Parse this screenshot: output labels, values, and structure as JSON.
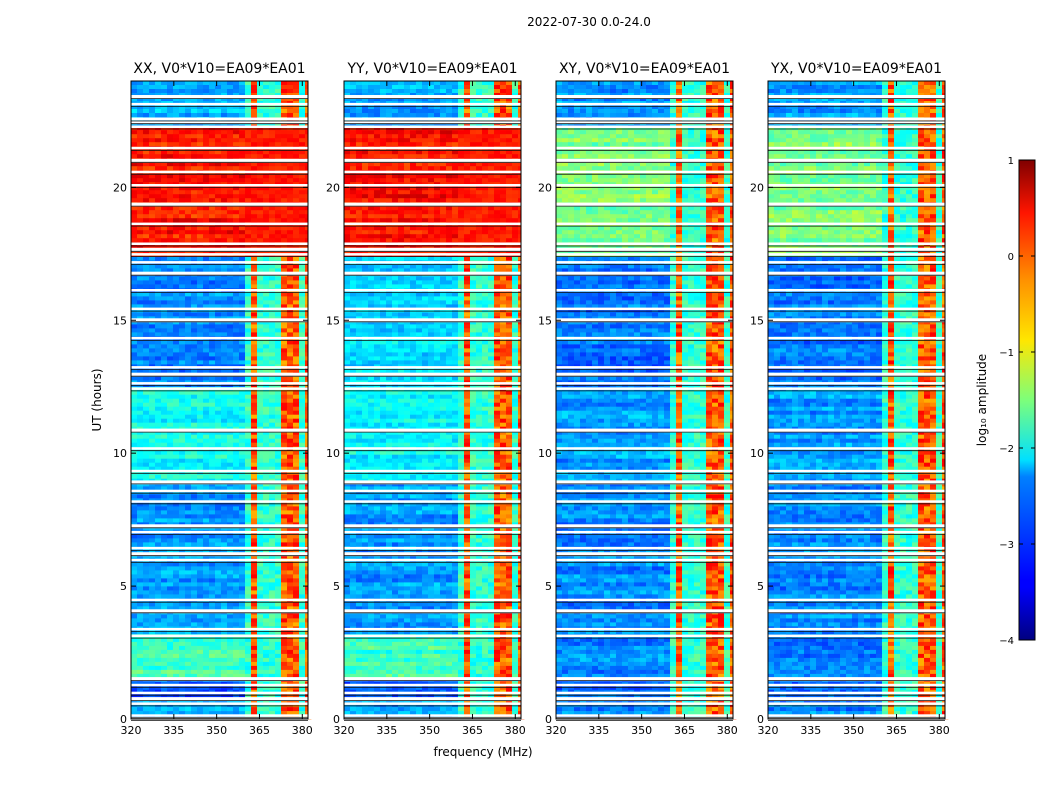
{
  "figure": {
    "suptitle": "2022-07-30 0.0-24.0",
    "xlabel": "frequency (MHz)",
    "ylabel": "UT (hours)"
  },
  "chart_data": {
    "type": "heatmap",
    "x_range": [
      320,
      382
    ],
    "y_range": [
      0,
      24
    ],
    "x_ticks": [
      320,
      335,
      350,
      365,
      380
    ],
    "y_ticks": [
      0,
      5,
      10,
      15,
      20
    ],
    "rfi_band_mhz": [
      359.5,
      381.5
    ],
    "rfi_channels_mhz": [
      360.5,
      363.5,
      366,
      368.5,
      371,
      373.5,
      376,
      378.5
    ],
    "flag_gaps_hours": [
      0.0,
      0.1,
      0.55,
      0.75,
      0.95,
      1.25,
      1.5,
      3.1,
      3.35,
      4.05,
      4.45,
      5.95,
      6.2,
      6.4,
      7.0,
      7.25,
      8.15,
      8.55,
      8.9,
      9.3,
      10.15,
      10.85,
      12.4,
      12.6,
      12.95,
      13.2,
      14.3,
      15.0,
      15.4,
      16.1,
      16.75,
      17.15,
      17.45,
      17.65,
      17.85,
      18.6,
      19.35,
      20.05,
      20.55,
      21.0,
      21.45,
      22.25,
      22.45,
      22.55,
      23.1,
      23.4
    ],
    "panels": [
      {
        "title": "XX, V0*V10=EA09*EA01",
        "tick_labels": true,
        "segments": [
          {
            "from": 0,
            "to": 0.75,
            "level": -2.6
          },
          {
            "from": 0.75,
            "to": 1.55,
            "level": -2.9
          },
          {
            "from": 1.55,
            "to": 3.2,
            "level": -1.8
          },
          {
            "from": 3.2,
            "to": 8.9,
            "level": -2.6
          },
          {
            "from": 8.9,
            "to": 12.5,
            "level": -2.1
          },
          {
            "from": 12.5,
            "to": 17.4,
            "level": -2.7
          },
          {
            "from": 17.4,
            "to": 22.3,
            "level": 0.3
          },
          {
            "from": 22.3,
            "to": 24,
            "level": -2.5
          }
        ]
      },
      {
        "title": "YY, V0*V10=EA09*EA01",
        "tick_labels": false,
        "segments": [
          {
            "from": 0,
            "to": 0.75,
            "level": -2.6
          },
          {
            "from": 0.75,
            "to": 1.55,
            "level": -2.9
          },
          {
            "from": 1.55,
            "to": 3.2,
            "level": -1.8
          },
          {
            "from": 3.2,
            "to": 8.9,
            "level": -2.6
          },
          {
            "from": 8.9,
            "to": 12.5,
            "level": -2.1
          },
          {
            "from": 12.5,
            "to": 17.4,
            "level": -2.3
          },
          {
            "from": 17.4,
            "to": 22.3,
            "level": 0.3
          },
          {
            "from": 22.3,
            "to": 24,
            "level": -2.5
          }
        ]
      },
      {
        "title": "XY, V0*V10=EA09*EA01",
        "tick_labels": false,
        "segments": [
          {
            "from": 0,
            "to": 0.75,
            "level": -2.7
          },
          {
            "from": 0.75,
            "to": 1.55,
            "level": -2.9
          },
          {
            "from": 1.55,
            "to": 3.2,
            "level": -2.7
          },
          {
            "from": 3.2,
            "to": 8.9,
            "level": -2.7
          },
          {
            "from": 8.9,
            "to": 12.5,
            "level": -2.6
          },
          {
            "from": 12.5,
            "to": 17.4,
            "level": -2.8
          },
          {
            "from": 17.4,
            "to": 22.3,
            "level": -1.5
          },
          {
            "from": 22.3,
            "to": 24,
            "level": -2.6
          }
        ]
      },
      {
        "title": "YX, V0*V10=EA09*EA01",
        "tick_labels": false,
        "segments": [
          {
            "from": 0,
            "to": 0.75,
            "level": -2.7
          },
          {
            "from": 0.75,
            "to": 1.55,
            "level": -2.9
          },
          {
            "from": 1.55,
            "to": 3.2,
            "level": -2.7
          },
          {
            "from": 3.2,
            "to": 8.9,
            "level": -2.7
          },
          {
            "from": 8.9,
            "to": 12.5,
            "level": -2.6
          },
          {
            "from": 12.5,
            "to": 17.4,
            "level": -2.8
          },
          {
            "from": 17.4,
            "to": 22.3,
            "level": -1.5
          },
          {
            "from": 22.3,
            "to": 24,
            "level": -2.6
          }
        ]
      }
    ],
    "colorbar": {
      "label": "log₁₀ amplitude",
      "range": [
        -4,
        1
      ],
      "ticks": [
        1,
        0,
        -1,
        -2,
        -3,
        -4
      ],
      "colormap": "jet"
    }
  }
}
